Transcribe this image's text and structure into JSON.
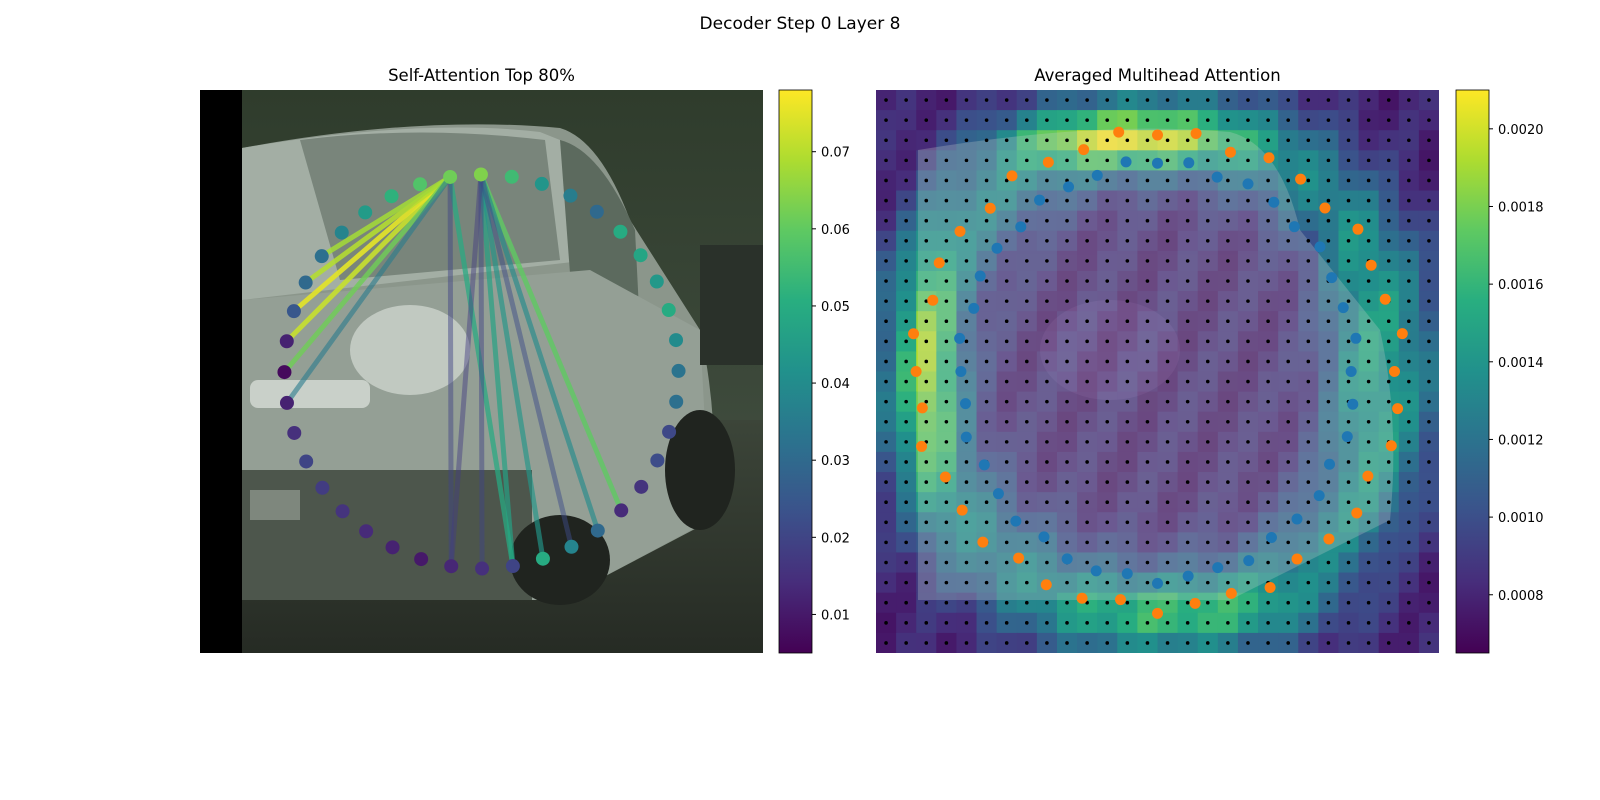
{
  "figure": {
    "suptitle": "Decoder Step 0 Layer 8"
  },
  "chart_data": [
    {
      "type": "scatter",
      "title": "Self-Attention Top 80%",
      "description_points": "40 contour points arranged in a ring over a photo of a white van; lines connect query points to attended points, colored by attention weight",
      "colorbar": {
        "colormap": "viridis",
        "vmin": 0.005,
        "vmax": 0.078,
        "ticks": [
          0.01,
          0.02,
          0.03,
          0.04,
          0.05,
          0.06,
          0.07
        ],
        "tick_labels": [
          "0.01",
          "0.02",
          "0.03",
          "0.04",
          "0.05",
          "0.06",
          "0.07"
        ]
      },
      "ring": {
        "count": 40,
        "center": [
          0.5,
          0.5
        ],
        "radius_x": 0.35,
        "radius_y": 0.35
      },
      "point_weights": [
        0.062,
        0.064,
        0.055,
        0.043,
        0.036,
        0.03,
        0.05,
        0.048,
        0.044,
        0.05,
        0.04,
        0.033,
        0.032,
        0.021,
        0.022,
        0.016,
        0.014,
        0.03,
        0.038,
        0.05,
        0.02,
        0.015,
        0.013,
        0.01,
        0.012,
        0.014,
        0.016,
        0.018,
        0.02,
        0.015,
        0.012,
        0.007,
        0.012,
        0.025,
        0.03,
        0.032,
        0.038,
        0.045,
        0.052,
        0.058
      ],
      "edges": [
        {
          "from": 0,
          "to": 32,
          "weight": 0.072
        },
        {
          "from": 0,
          "to": 33,
          "weight": 0.075
        },
        {
          "from": 0,
          "to": 34,
          "weight": 0.07
        },
        {
          "from": 0,
          "to": 35,
          "weight": 0.068
        },
        {
          "from": 0,
          "to": 31,
          "weight": 0.062
        },
        {
          "from": 0,
          "to": 30,
          "weight": 0.035
        },
        {
          "from": 1,
          "to": 20,
          "weight": 0.047
        },
        {
          "from": 1,
          "to": 19,
          "weight": 0.043
        },
        {
          "from": 1,
          "to": 16,
          "weight": 0.06
        },
        {
          "from": 1,
          "to": 17,
          "weight": 0.04
        },
        {
          "from": 0,
          "to": 20,
          "weight": 0.05
        },
        {
          "from": 0,
          "to": 22,
          "weight": 0.02
        },
        {
          "from": 1,
          "to": 22,
          "weight": 0.018
        },
        {
          "from": 1,
          "to": 18,
          "weight": 0.022
        },
        {
          "from": 1,
          "to": 21,
          "weight": 0.02
        }
      ]
    },
    {
      "type": "heatmap",
      "title": "Averaged Multihead Attention",
      "colorbar": {
        "colormap": "viridis",
        "vmin": 0.00065,
        "vmax": 0.0021,
        "ticks": [
          0.0008,
          0.001,
          0.0012,
          0.0014,
          0.0016,
          0.0018,
          0.002
        ],
        "tick_labels": [
          "0.0008",
          "0.0010",
          "0.0012",
          "0.0014",
          "0.0016",
          "0.0018",
          "0.0020"
        ]
      },
      "grid": {
        "cols": 28,
        "rows": 28
      },
      "series": [
        {
          "name": "inner contour",
          "color": "#1f77b4",
          "count": 40
        },
        {
          "name": "outer contour",
          "color": "#ff7f0e",
          "count": 40
        }
      ]
    }
  ]
}
